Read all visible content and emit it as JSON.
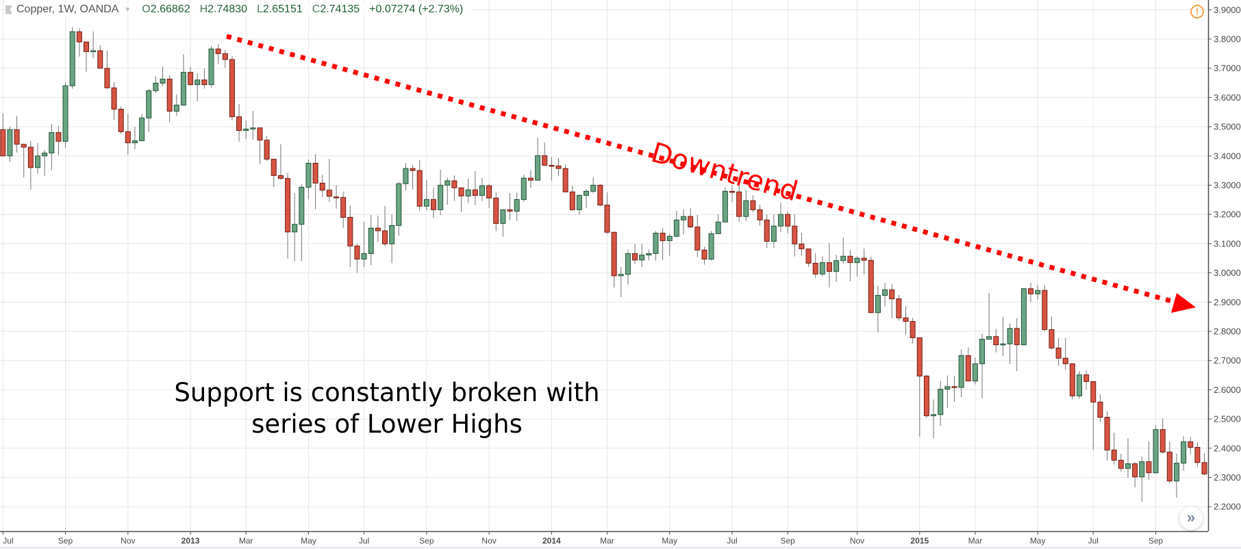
{
  "legend": {
    "symbol": "Copper, 1W, OANDA",
    "open_label": "O",
    "open": "2.66862",
    "high_label": "H",
    "high": "2.74830",
    "low_label": "L",
    "low": "2.65151",
    "close_label": "C",
    "close": "2.74135",
    "change": "+0.07274 (+2.73%)"
  },
  "alert_icon": "!",
  "scroll_button": "»",
  "annotations": {
    "trend_label": "Downtrend",
    "note_line1": "Support is constantly broken with",
    "note_line2": "series of Lower Highs"
  },
  "colors": {
    "up": "#6ba583",
    "up_border": "#225437",
    "down": "#d75442",
    "down_border": "#6f1e13",
    "wick": "#737375",
    "trend": "#ff0000",
    "grid": "#e6e6e6"
  },
  "chart_data": {
    "type": "candlestick",
    "title": "Copper, 1W, OANDA",
    "ylim": [
      2.15,
      3.95
    ],
    "grid": true,
    "y_ticks": [
      "3.90000",
      "3.80000",
      "3.70000",
      "3.60000",
      "3.50000",
      "3.40000",
      "3.30000",
      "3.20000",
      "3.10000",
      "3.00000",
      "2.90000",
      "2.80000",
      "2.70000",
      "2.60000",
      "2.50000",
      "2.40000",
      "2.30000",
      "2.20000"
    ],
    "x_ticks": [
      {
        "label": "Jul",
        "index": 0,
        "bold": false
      },
      {
        "label": "Sep",
        "index": 9,
        "bold": false
      },
      {
        "label": "Nov",
        "index": 18,
        "bold": false
      },
      {
        "label": "2013",
        "index": 27,
        "bold": true
      },
      {
        "label": "Mar",
        "index": 35,
        "bold": false
      },
      {
        "label": "May",
        "index": 44,
        "bold": false
      },
      {
        "label": "Jul",
        "index": 52,
        "bold": false
      },
      {
        "label": "Sep",
        "index": 61,
        "bold": false
      },
      {
        "label": "Nov",
        "index": 70,
        "bold": false
      },
      {
        "label": "2014",
        "index": 79,
        "bold": true
      },
      {
        "label": "Mar",
        "index": 87,
        "bold": false
      },
      {
        "label": "May",
        "index": 96,
        "bold": false
      },
      {
        "label": "Jul",
        "index": 105,
        "bold": false
      },
      {
        "label": "Sep",
        "index": 113,
        "bold": false
      },
      {
        "label": "Nov",
        "index": 123,
        "bold": false
      },
      {
        "label": "2015",
        "index": 132,
        "bold": true
      },
      {
        "label": "Mar",
        "index": 140,
        "bold": false
      },
      {
        "label": "May",
        "index": 149,
        "bold": false
      },
      {
        "label": "Jul",
        "index": 157,
        "bold": false
      },
      {
        "label": "Sep",
        "index": 166,
        "bold": false
      }
    ],
    "ohlc_fields": [
      "open",
      "high",
      "low",
      "close"
    ],
    "candles": [
      [
        3.49,
        3.545,
        3.4,
        3.4
      ],
      [
        3.4,
        3.5,
        3.379,
        3.49
      ],
      [
        3.49,
        3.537,
        3.412,
        3.44
      ],
      [
        3.44,
        3.44,
        3.327,
        3.43
      ],
      [
        3.43,
        3.451,
        3.285,
        3.36
      ],
      [
        3.36,
        3.444,
        3.339,
        3.4
      ],
      [
        3.4,
        3.42,
        3.332,
        3.41
      ],
      [
        3.41,
        3.509,
        3.351,
        3.48
      ],
      [
        3.48,
        3.502,
        3.402,
        3.45
      ],
      [
        3.45,
        3.652,
        3.428,
        3.64
      ],
      [
        3.64,
        3.841,
        3.63,
        3.825
      ],
      [
        3.825,
        3.837,
        3.74,
        3.79
      ],
      [
        3.79,
        3.79,
        3.688,
        3.757
      ],
      [
        3.757,
        3.826,
        3.735,
        3.76
      ],
      [
        3.76,
        3.779,
        3.7,
        3.7
      ],
      [
        3.7,
        3.76,
        3.63,
        3.633
      ],
      [
        3.633,
        3.652,
        3.524,
        3.56
      ],
      [
        3.56,
        3.569,
        3.475,
        3.483
      ],
      [
        3.483,
        3.544,
        3.405,
        3.445
      ],
      [
        3.445,
        3.5,
        3.423,
        3.452
      ],
      [
        3.452,
        3.542,
        3.45,
        3.53
      ],
      [
        3.53,
        3.629,
        3.482,
        3.623
      ],
      [
        3.623,
        3.673,
        3.615,
        3.649
      ],
      [
        3.649,
        3.706,
        3.639,
        3.663
      ],
      [
        3.663,
        3.676,
        3.515,
        3.553
      ],
      [
        3.553,
        3.61,
        3.538,
        3.574
      ],
      [
        3.574,
        3.748,
        3.571,
        3.686
      ],
      [
        3.686,
        3.704,
        3.639,
        3.644
      ],
      [
        3.644,
        3.683,
        3.587,
        3.66
      ],
      [
        3.66,
        3.699,
        3.63,
        3.644
      ],
      [
        3.644,
        3.775,
        3.634,
        3.766
      ],
      [
        3.766,
        3.782,
        3.714,
        3.75
      ],
      [
        3.75,
        3.762,
        3.702,
        3.73
      ],
      [
        3.73,
        3.741,
        3.522,
        3.534
      ],
      [
        3.534,
        3.577,
        3.449,
        3.487
      ],
      [
        3.487,
        3.521,
        3.458,
        3.492
      ],
      [
        3.492,
        3.554,
        3.456,
        3.496
      ],
      [
        3.496,
        3.496,
        3.372,
        3.454
      ],
      [
        3.454,
        3.469,
        3.383,
        3.389
      ],
      [
        3.389,
        3.389,
        3.294,
        3.333
      ],
      [
        3.333,
        3.44,
        3.319,
        3.323
      ],
      [
        3.323,
        3.343,
        3.05,
        3.14
      ],
      [
        3.14,
        3.273,
        3.04,
        3.166
      ],
      [
        3.166,
        3.303,
        3.04,
        3.293
      ],
      [
        3.293,
        3.387,
        3.252,
        3.375
      ],
      [
        3.375,
        3.406,
        3.217,
        3.307
      ],
      [
        3.307,
        3.336,
        3.259,
        3.283
      ],
      [
        3.283,
        3.39,
        3.243,
        3.262
      ],
      [
        3.26,
        3.3,
        3.22,
        3.258
      ],
      [
        3.258,
        3.277,
        3.154,
        3.19
      ],
      [
        3.19,
        3.23,
        3.02,
        3.092
      ],
      [
        3.092,
        3.1,
        3.0,
        3.047
      ],
      [
        3.047,
        3.175,
        3.02,
        3.066
      ],
      [
        3.066,
        3.198,
        3.026,
        3.153
      ],
      [
        3.153,
        3.196,
        3.106,
        3.144
      ],
      [
        3.144,
        3.229,
        3.092,
        3.099
      ],
      [
        3.099,
        3.2,
        3.033,
        3.162
      ],
      [
        3.162,
        3.312,
        3.127,
        3.305
      ],
      [
        3.305,
        3.375,
        3.282,
        3.357
      ],
      [
        3.357,
        3.369,
        3.286,
        3.35
      ],
      [
        3.35,
        3.385,
        3.213,
        3.228
      ],
      [
        3.228,
        3.317,
        3.215,
        3.251
      ],
      [
        3.251,
        3.292,
        3.187,
        3.216
      ],
      [
        3.216,
        3.352,
        3.197,
        3.3
      ],
      [
        3.3,
        3.325,
        3.233,
        3.315
      ],
      [
        3.315,
        3.333,
        3.246,
        3.291
      ],
      [
        3.291,
        3.291,
        3.208,
        3.263
      ],
      [
        3.263,
        3.322,
        3.239,
        3.284
      ],
      [
        3.284,
        3.348,
        3.232,
        3.265
      ],
      [
        3.265,
        3.325,
        3.246,
        3.298
      ],
      [
        3.298,
        3.305,
        3.222,
        3.256
      ],
      [
        3.256,
        3.275,
        3.143,
        3.169
      ],
      [
        3.169,
        3.217,
        3.124,
        3.216
      ],
      [
        3.216,
        3.273,
        3.18,
        3.211
      ],
      [
        3.211,
        3.275,
        3.178,
        3.251
      ],
      [
        3.251,
        3.336,
        3.243,
        3.324
      ],
      [
        3.324,
        3.352,
        3.291,
        3.317
      ],
      [
        3.317,
        3.462,
        3.315,
        3.401
      ],
      [
        3.401,
        3.446,
        3.366,
        3.368
      ],
      [
        3.368,
        3.397,
        3.315,
        3.367
      ],
      [
        3.366,
        3.393,
        3.331,
        3.357
      ],
      [
        3.357,
        3.371,
        3.275,
        3.277
      ],
      [
        3.277,
        3.298,
        3.213,
        3.216
      ],
      [
        3.216,
        3.268,
        3.199,
        3.265
      ],
      [
        3.265,
        3.286,
        3.222,
        3.279
      ],
      [
        3.279,
        3.326,
        3.272,
        3.3
      ],
      [
        3.3,
        3.303,
        3.228,
        3.232
      ],
      [
        3.232,
        3.275,
        3.133,
        3.139
      ],
      [
        3.139,
        3.139,
        2.95,
        2.99
      ],
      [
        2.99,
        3.02,
        2.917,
        2.995
      ],
      [
        2.995,
        3.08,
        2.96,
        3.066
      ],
      [
        3.066,
        3.099,
        3.03,
        3.044
      ],
      [
        3.044,
        3.099,
        3.02,
        3.061
      ],
      [
        3.061,
        3.08,
        3.042,
        3.066
      ],
      [
        3.066,
        3.143,
        3.042,
        3.136
      ],
      [
        3.136,
        3.153,
        3.044,
        3.11
      ],
      [
        3.11,
        3.133,
        3.059,
        3.125
      ],
      [
        3.125,
        3.212,
        3.122,
        3.181
      ],
      [
        3.181,
        3.217,
        3.131,
        3.193
      ],
      [
        3.193,
        3.222,
        3.154,
        3.157
      ],
      [
        3.157,
        3.198,
        3.054,
        3.078
      ],
      [
        3.078,
        3.09,
        3.028,
        3.047
      ],
      [
        3.047,
        3.143,
        3.043,
        3.134
      ],
      [
        3.134,
        3.2,
        3.133,
        3.174
      ],
      [
        3.174,
        3.293,
        3.172,
        3.279
      ],
      [
        3.279,
        3.3,
        3.242,
        3.277
      ],
      [
        3.277,
        3.3,
        3.175,
        3.193
      ],
      [
        3.193,
        3.284,
        3.178,
        3.247
      ],
      [
        3.247,
        3.265,
        3.208,
        3.216
      ],
      [
        3.216,
        3.233,
        3.161,
        3.181
      ],
      [
        3.181,
        3.2,
        3.085,
        3.108
      ],
      [
        3.108,
        3.2,
        3.085,
        3.16
      ],
      [
        3.16,
        3.24,
        3.14,
        3.2
      ],
      [
        3.2,
        3.21,
        3.135,
        3.16
      ],
      [
        3.16,
        3.2,
        3.056,
        3.099
      ],
      [
        3.099,
        3.137,
        3.059,
        3.082
      ],
      [
        3.082,
        3.082,
        3.021,
        3.033
      ],
      [
        3.033,
        3.067,
        2.983,
        2.996
      ],
      [
        2.996,
        3.057,
        2.988,
        3.035
      ],
      [
        3.035,
        3.102,
        2.95,
        3.005
      ],
      [
        3.005,
        3.062,
        2.969,
        3.042
      ],
      [
        3.042,
        3.121,
        3.033,
        3.057
      ],
      [
        3.057,
        3.078,
        2.971,
        3.035
      ],
      [
        3.035,
        3.057,
        2.988,
        3.05
      ],
      [
        3.05,
        3.083,
        2.995,
        3.043
      ],
      [
        3.043,
        3.055,
        2.864,
        2.864
      ],
      [
        2.864,
        2.957,
        2.796,
        2.923
      ],
      [
        2.923,
        2.966,
        2.885,
        2.942
      ],
      [
        2.942,
        2.961,
        2.845,
        2.911
      ],
      [
        2.911,
        2.924,
        2.836,
        2.846
      ],
      [
        2.846,
        2.886,
        2.789,
        2.834
      ],
      [
        2.834,
        2.846,
        2.758,
        2.778
      ],
      [
        2.778,
        2.778,
        2.44,
        2.647
      ],
      [
        2.647,
        2.651,
        2.504,
        2.511
      ],
      [
        2.511,
        2.567,
        2.434,
        2.515
      ],
      [
        2.515,
        2.63,
        2.477,
        2.602
      ],
      [
        2.602,
        2.649,
        2.538,
        2.611
      ],
      [
        2.611,
        2.647,
        2.559,
        2.608
      ],
      [
        2.608,
        2.738,
        2.575,
        2.717
      ],
      [
        2.717,
        2.745,
        2.63,
        2.63
      ],
      [
        2.63,
        2.71,
        2.618,
        2.689
      ],
      [
        2.689,
        2.792,
        2.571,
        2.773
      ],
      [
        2.773,
        2.932,
        2.773,
        2.782
      ],
      [
        2.782,
        2.808,
        2.728,
        2.754
      ],
      [
        2.754,
        2.85,
        2.716,
        2.757
      ],
      [
        2.757,
        2.827,
        2.688,
        2.81
      ],
      [
        2.81,
        2.845,
        2.664,
        2.754
      ],
      [
        2.754,
        2.946,
        2.751,
        2.946
      ],
      [
        2.946,
        2.966,
        2.901,
        2.928
      ],
      [
        2.928,
        2.958,
        2.909,
        2.94
      ],
      [
        2.94,
        2.958,
        2.8,
        2.806
      ],
      [
        2.806,
        2.85,
        2.737,
        2.743
      ],
      [
        2.743,
        2.777,
        2.682,
        2.708
      ],
      [
        2.708,
        2.777,
        2.669,
        2.689
      ],
      [
        2.689,
        2.689,
        2.567,
        2.579
      ],
      [
        2.579,
        2.664,
        2.569,
        2.651
      ],
      [
        2.651,
        2.666,
        2.601,
        2.628
      ],
      [
        2.628,
        2.628,
        2.395,
        2.558
      ],
      [
        2.558,
        2.584,
        2.489,
        2.506
      ],
      [
        2.506,
        2.526,
        2.358,
        2.394
      ],
      [
        2.394,
        2.453,
        2.344,
        2.359
      ],
      [
        2.359,
        2.381,
        2.321,
        2.331
      ],
      [
        2.331,
        2.434,
        2.299,
        2.347
      ],
      [
        2.347,
        2.352,
        2.266,
        2.302
      ],
      [
        2.302,
        2.372,
        2.216,
        2.354
      ],
      [
        2.354,
        2.423,
        2.292,
        2.316
      ],
      [
        2.316,
        2.479,
        2.313,
        2.464
      ],
      [
        2.464,
        2.502,
        2.381,
        2.387
      ],
      [
        2.387,
        2.423,
        2.281,
        2.288
      ],
      [
        2.288,
        2.381,
        2.231,
        2.349
      ],
      [
        2.349,
        2.441,
        2.323,
        2.422
      ],
      [
        2.422,
        2.439,
        2.381,
        2.403
      ],
      [
        2.403,
        2.42,
        2.335,
        2.351
      ],
      [
        2.351,
        2.383,
        2.307,
        2.312
      ]
    ]
  }
}
